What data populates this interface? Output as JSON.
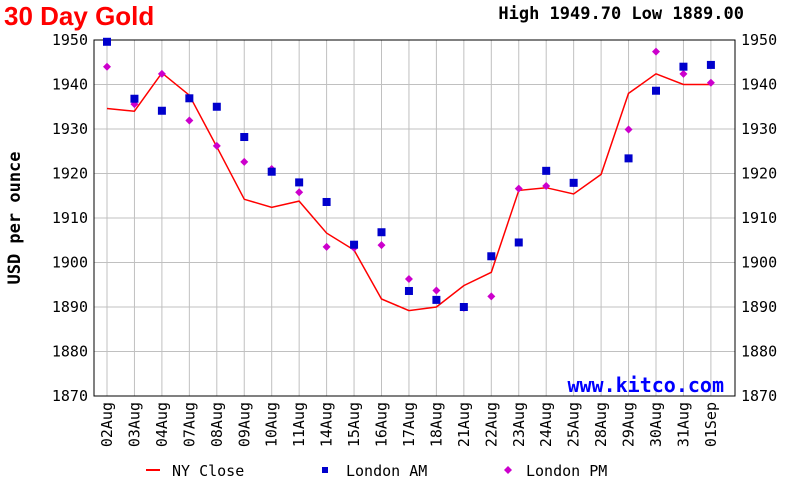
{
  "header": {
    "title": "30 Day Gold",
    "high_low": "High 1949.70 Low 1889.00"
  },
  "watermark": "www.kitco.com",
  "colors": {
    "title": "#ff0000",
    "ny_close": "#ff0000",
    "london_am": "#0000cc",
    "london_pm": "#cc00cc",
    "watermark": "#0000ff",
    "grid": "#c0c0c0"
  },
  "chart_data": {
    "type": "line",
    "ylabel": "USD per ounce",
    "ylim": [
      1870,
      1950
    ],
    "yticks": [
      1870,
      1880,
      1890,
      1900,
      1910,
      1920,
      1930,
      1940,
      1950
    ],
    "categories": [
      "02Aug",
      "03Aug",
      "04Aug",
      "07Aug",
      "08Aug",
      "09Aug",
      "10Aug",
      "11Aug",
      "14Aug",
      "15Aug",
      "16Aug",
      "17Aug",
      "18Aug",
      "21Aug",
      "22Aug",
      "23Aug",
      "24Aug",
      "25Aug",
      "28Aug",
      "29Aug",
      "30Aug",
      "31Aug",
      "01Sep"
    ],
    "grid": true,
    "legend_position": "bottom",
    "series": [
      {
        "name": "NY Close",
        "style": "line",
        "values": [
          1934.6,
          1934.0,
          1942.6,
          1937.6,
          1926.0,
          1914.2,
          1912.4,
          1913.8,
          1906.6,
          1902.8,
          1891.8,
          1889.2,
          1890.0,
          1894.8,
          1897.8,
          1916.2,
          1916.8,
          1915.4,
          1919.8,
          1938.0,
          1942.4,
          1940.0,
          1940.0
        ]
      },
      {
        "name": "London AM",
        "style": "square",
        "values": [
          1949.6,
          1936.8,
          1934.1,
          1936.9,
          1935.0,
          1928.2,
          1920.4,
          1918.0,
          1913.6,
          1904.0,
          1906.8,
          1893.6,
          1891.6,
          1890.0,
          1901.4,
          1904.5,
          1920.6,
          1917.9,
          null,
          1923.4,
          1938.6,
          1944.0,
          1944.4
        ]
      },
      {
        "name": "London PM",
        "style": "diamond",
        "values": [
          1944.0,
          1935.6,
          1942.4,
          1931.9,
          1926.2,
          1922.6,
          1921.0,
          1915.8,
          1903.5,
          1903.3,
          1903.9,
          1896.3,
          1893.7,
          1889.8,
          1892.4,
          1916.6,
          1917.2,
          1917.8,
          null,
          1929.9,
          1947.4,
          1942.4,
          1940.4
        ]
      }
    ]
  }
}
